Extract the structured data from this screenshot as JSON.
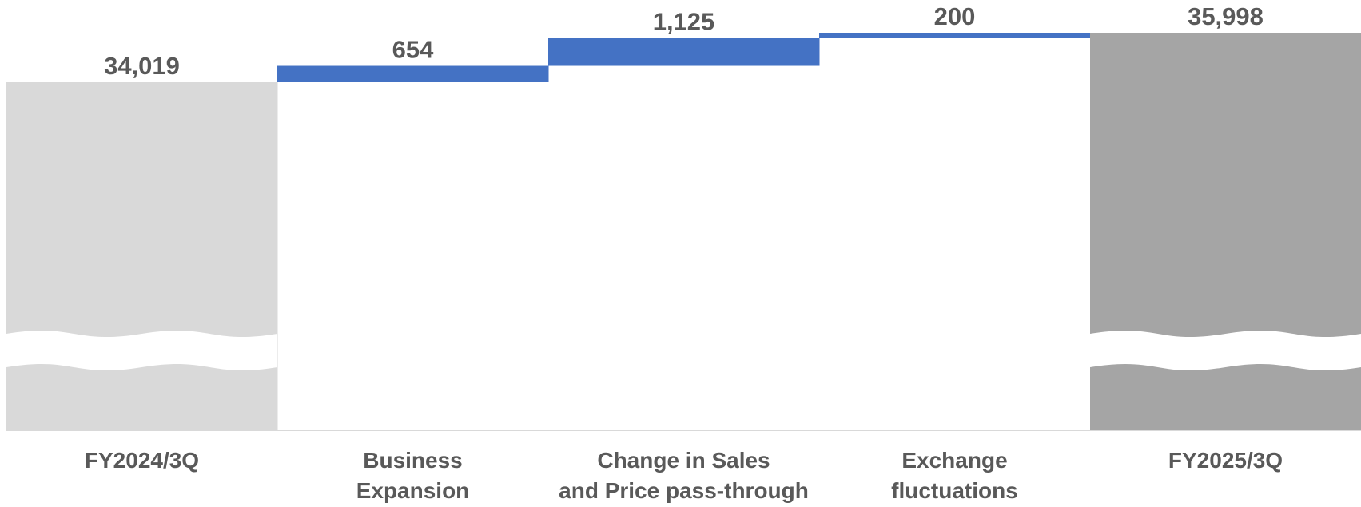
{
  "chart_data": {
    "type": "waterfall",
    "title": "",
    "xlabel": "",
    "ylabel": "",
    "axis_break": true,
    "grid": false,
    "legend": "none",
    "categories": [
      [
        "FY2024/3Q"
      ],
      [
        "Business",
        "Expansion"
      ],
      [
        "Change in Sales",
        "and Price pass-through"
      ],
      [
        "Exchange",
        "fluctuations"
      ],
      [
        "FY2025/3Q"
      ]
    ],
    "items": [
      {
        "kind": "total",
        "value": 34019,
        "label": "34,019",
        "color": "#d9d9d9"
      },
      {
        "kind": "delta",
        "value": 654,
        "label": "654",
        "color": "#4472c4"
      },
      {
        "kind": "delta",
        "value": 1125,
        "label": "1,125",
        "color": "#4472c4"
      },
      {
        "kind": "delta",
        "value": 200,
        "label": "200",
        "color": "#4472c4"
      },
      {
        "kind": "total",
        "value": 35998,
        "label": "35,998",
        "color": "#a5a5a5"
      }
    ],
    "label_color": "#595959",
    "axis_color": "#d9d9d9"
  }
}
